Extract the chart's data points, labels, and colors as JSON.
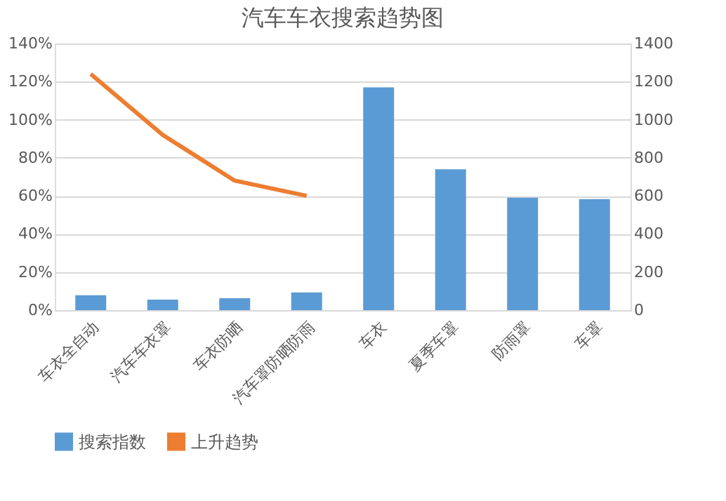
{
  "chart_data": {
    "type": "bar",
    "title": "汽车车衣搜索趋势图",
    "categories": [
      "车衣全自动",
      "汽车车衣罩",
      "车衣防晒",
      "汽车罩防晒防雨",
      "车衣",
      "夏季车罩",
      "防雨罩",
      "车罩"
    ],
    "series": [
      {
        "name": "搜索指数",
        "axis": "y2",
        "color": "#5b9bd5",
        "values": [
          78,
          55,
          63,
          93,
          1170,
          740,
          590,
          583
        ]
      },
      {
        "name": "上升趋势",
        "type": "line",
        "color": "#ed7d31",
        "values": [
          124,
          92,
          68,
          60,
          null,
          null,
          null,
          null
        ]
      }
    ],
    "ylim": [
      0,
      140
    ],
    "yticks": [
      {
        "value": 0,
        "label": "0%"
      },
      {
        "value": 20,
        "label": "20%"
      },
      {
        "value": 40,
        "label": "40%"
      },
      {
        "value": 60,
        "label": "60%"
      },
      {
        "value": 80,
        "label": "80%"
      },
      {
        "value": 100,
        "label": "100%"
      },
      {
        "value": 120,
        "label": "120%"
      },
      {
        "value": 140,
        "label": "140%"
      }
    ],
    "y2lim": [
      0,
      1400
    ],
    "y2ticks": [
      0,
      200,
      400,
      600,
      800,
      1000,
      1200,
      1400
    ],
    "grid": "y",
    "legend": "bottom",
    "marker": "none",
    "line_style": "solid"
  }
}
